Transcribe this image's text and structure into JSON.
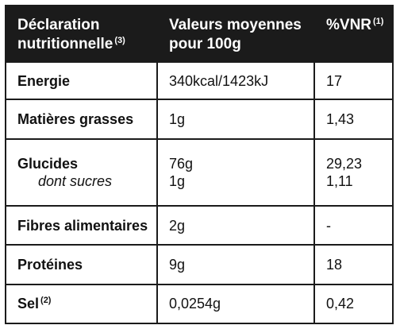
{
  "header": {
    "col1_line1": "Déclaration",
    "col1_line2": "nutritionnelle",
    "col1_sup": "(3)",
    "col2_line1": "Valeurs moyennes",
    "col2_line2": "pour 100g",
    "col3": "%VNR",
    "col3_sup": "(1)"
  },
  "rows": [
    {
      "label": "Energie",
      "value": "340kcal/1423kJ",
      "vnr": "17"
    },
    {
      "label": "Matières grasses",
      "value": "1g",
      "vnr": "1,43"
    },
    {
      "label": "Glucides",
      "value": "76g",
      "vnr": "29,23",
      "sub_label": "dont sucres",
      "sub_value": "1g",
      "sub_vnr": "1,11"
    },
    {
      "label": "Fibres alimentaires",
      "value": "2g",
      "vnr": "-"
    },
    {
      "label": "Protéines",
      "value": "9g",
      "vnr": "18"
    },
    {
      "label": "Sel",
      "label_sup": "(2)",
      "value": "0,0254g",
      "vnr": "0,42"
    }
  ]
}
